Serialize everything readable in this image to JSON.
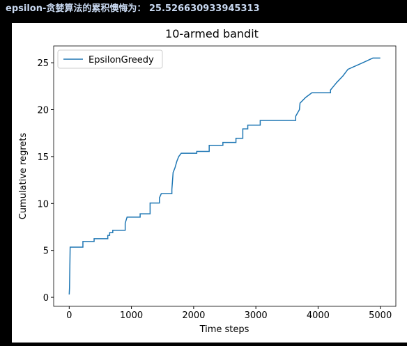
{
  "console": {
    "text": "epsilon-贪婪算法的累积懊悔为： 25.526630933945313"
  },
  "chart_data": {
    "type": "line",
    "title": "10-armed bandit",
    "x_label": "Time steps",
    "y_label": "Cumulative regrets",
    "legend": "upper left",
    "xlim": [
      -250,
      5250
    ],
    "ylim": [
      -0.96,
      26.79
    ],
    "xticks": [
      0,
      1000,
      2000,
      3000,
      4000,
      5000
    ],
    "yticks": [
      0,
      5,
      10,
      15,
      20,
      25
    ],
    "series": [
      {
        "name": "EpsilonGreedy",
        "color": "#1f77b4",
        "x": [
          0,
          5,
          15,
          220,
          220,
          400,
          400,
          620,
          620,
          650,
          650,
          700,
          700,
          900,
          900,
          930,
          1140,
          1140,
          1300,
          1300,
          1450,
          1450,
          1480,
          1650,
          1650,
          1670,
          1700,
          1730,
          1760,
          1800,
          2050,
          2050,
          2250,
          2250,
          2470,
          2470,
          2680,
          2680,
          2790,
          2790,
          2870,
          2870,
          3070,
          3070,
          3640,
          3640,
          3700,
          3710,
          3800,
          3900,
          4200,
          4200,
          4250,
          4300,
          4400,
          4480,
          4650,
          4750,
          4880,
          5000
        ],
        "values": [
          0.3,
          1.0,
          5.35,
          5.35,
          5.95,
          5.95,
          6.25,
          6.25,
          6.6,
          6.6,
          6.9,
          6.9,
          7.15,
          7.15,
          7.9,
          8.55,
          8.55,
          8.9,
          8.9,
          10.05,
          10.05,
          10.6,
          11.05,
          11.05,
          11.5,
          13.3,
          13.8,
          14.5,
          15.0,
          15.35,
          15.35,
          15.55,
          15.55,
          16.2,
          16.2,
          16.5,
          16.5,
          16.95,
          16.95,
          17.95,
          17.95,
          18.35,
          18.35,
          18.85,
          18.85,
          19.3,
          20.0,
          20.7,
          21.3,
          21.8,
          21.8,
          22.1,
          22.5,
          22.9,
          23.6,
          24.3,
          24.8,
          25.1,
          25.5,
          25.5
        ]
      }
    ]
  }
}
